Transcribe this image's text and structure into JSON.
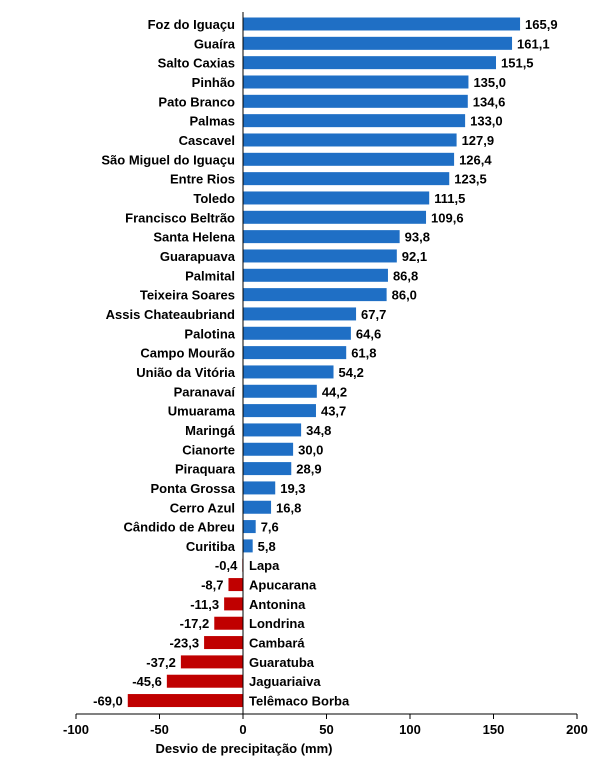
{
  "chart_data": {
    "type": "bar",
    "orientation": "horizontal",
    "xlabel": "Desvio de precipitação (mm)",
    "xlim": [
      -100,
      200
    ],
    "xticks": [
      -100,
      -50,
      0,
      50,
      100,
      150,
      200
    ],
    "xtick_labels": [
      "-100",
      "-50",
      "0",
      "50",
      "100",
      "150",
      "200"
    ],
    "grid": false,
    "colors": {
      "positive": "#1f6fc5",
      "negative": "#c00000"
    },
    "categories": [
      "Foz do Iguaçu",
      "Guaíra",
      "Salto Caxias",
      "Pinhão",
      "Pato Branco",
      "Palmas",
      "Cascavel",
      "São Miguel do Iguaçu",
      "Entre Rios",
      "Toledo",
      "Francisco Beltrão",
      "Santa Helena",
      "Guarapuava",
      "Palmital",
      "Teixeira Soares",
      "Assis Chateaubriand",
      "Palotina",
      "Campo Mourão",
      "União da Vitória",
      "Paranavaí",
      "Umuarama",
      "Maringá",
      "Cianorte",
      "Piraquara",
      "Ponta Grossa",
      "Cerro Azul",
      "Cândido de Abreu",
      "Curitiba",
      "Lapa",
      "Apucarana",
      "Antonina",
      "Londrina",
      "Cambará",
      "Guaratuba",
      "Jaguariaiva",
      "Telêmaco Borba"
    ],
    "values": [
      165.9,
      161.1,
      151.5,
      135.0,
      134.6,
      133.0,
      127.9,
      126.4,
      123.5,
      111.5,
      109.6,
      93.8,
      92.1,
      86.8,
      86.0,
      67.7,
      64.6,
      61.8,
      54.2,
      44.2,
      43.7,
      34.8,
      30.0,
      28.9,
      19.3,
      16.8,
      7.6,
      5.8,
      -0.4,
      -8.7,
      -11.3,
      -17.2,
      -23.3,
      -37.2,
      -45.6,
      -69.0
    ],
    "value_labels": [
      "165,9",
      "161,1",
      "151,5",
      "135,0",
      "134,6",
      "133,0",
      "127,9",
      "126,4",
      "123,5",
      "111,5",
      "109,6",
      "93,8",
      "92,1",
      "86,8",
      "86,0",
      "67,7",
      "64,6",
      "61,8",
      "54,2",
      "44,2",
      "43,7",
      "34,8",
      "30,0",
      "28,9",
      "19,3",
      "16,8",
      "7,6",
      "5,8",
      "-0,4",
      "-8,7",
      "-11,3",
      "-17,2",
      "-23,3",
      "-37,2",
      "-45,6",
      "-69,0"
    ]
  }
}
